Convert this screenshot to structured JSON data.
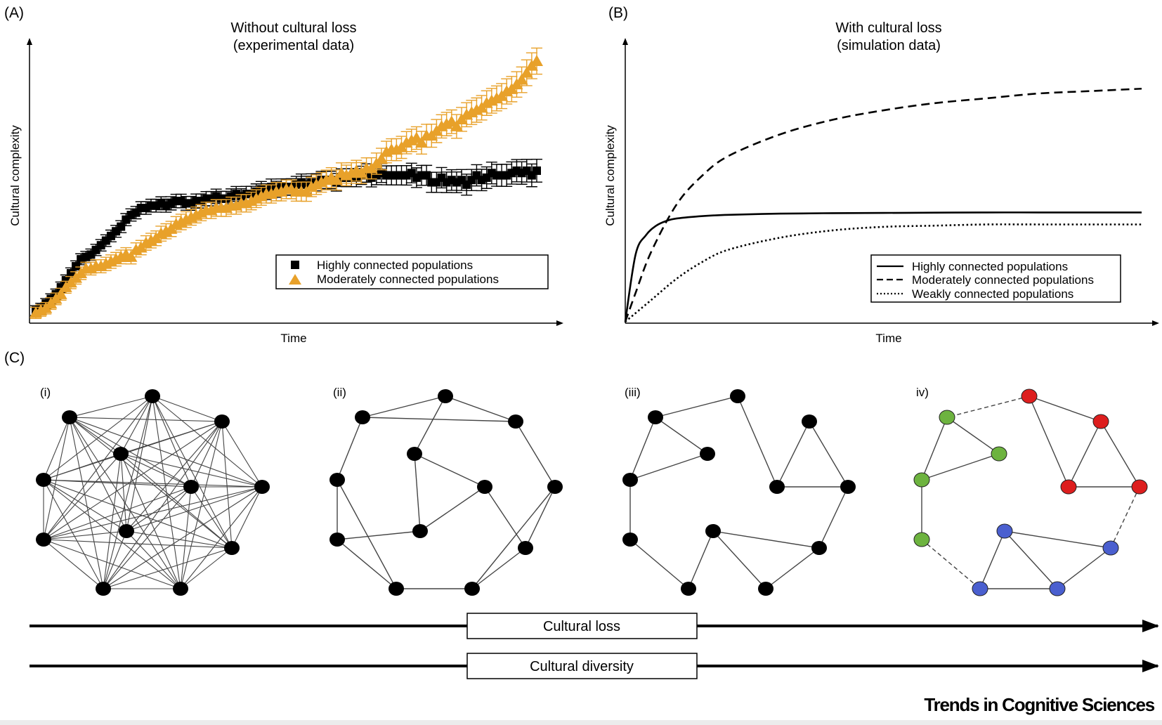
{
  "panel_a": {
    "label": "(A)",
    "title_line1": "Without cultural loss",
    "title_line2": "(experimental data)",
    "ylabel": "Cultural complexity",
    "xlabel": "Time",
    "legend": [
      "Highly connected populations",
      "Moderately connected populations"
    ]
  },
  "panel_b": {
    "label": "(B)",
    "title_line1": "With cultural loss",
    "title_line2": "(simulation data)",
    "ylabel": "Cultural complexity",
    "xlabel": "Time",
    "legend": [
      "Highly connected populations",
      "Moderately connected populations",
      "Weakly connected populations"
    ]
  },
  "panel_c": {
    "label": "(C)",
    "subpanels": [
      "(i)",
      "(ii)",
      "(iii)",
      "iv)"
    ],
    "arrows": [
      "Cultural loss",
      "Cultural diversity"
    ]
  },
  "colors": {
    "black": "#000000",
    "orange": "#e8a12a",
    "green": "#6db33f",
    "red": "#dd1e1e",
    "blue": "#4a5fcf",
    "edge": "#444444"
  },
  "journal": "Trends in Cognitive Sciences",
  "chart_data": [
    {
      "type": "scatter",
      "panel": "A",
      "title": "Without cultural loss (experimental data)",
      "xlabel": "Time",
      "ylabel": "Cultural complexity",
      "legend_position": "bottom-right",
      "series": [
        {
          "name": "Highly connected populations",
          "color": "#000000",
          "marker": "square",
          "x": [
            0.0,
            0.01,
            0.02,
            0.03,
            0.04,
            0.05,
            0.06,
            0.07,
            0.08,
            0.09,
            0.1,
            0.11,
            0.12,
            0.13,
            0.14,
            0.15,
            0.16,
            0.17,
            0.18,
            0.19,
            0.2,
            0.21,
            0.22,
            0.23,
            0.24,
            0.25,
            0.26,
            0.27,
            0.28,
            0.29,
            0.3,
            0.31,
            0.32,
            0.33,
            0.34,
            0.35,
            0.36,
            0.37,
            0.38,
            0.39,
            0.4,
            0.41,
            0.42,
            0.43,
            0.44,
            0.45,
            0.46,
            0.47,
            0.48,
            0.49,
            0.5,
            0.51,
            0.52,
            0.53,
            0.54,
            0.55,
            0.56,
            0.57,
            0.58,
            0.59,
            0.6,
            0.61,
            0.62,
            0.63,
            0.64,
            0.65,
            0.66,
            0.67,
            0.68,
            0.69,
            0.7,
            0.71,
            0.72,
            0.73,
            0.74,
            0.75,
            0.76,
            0.77,
            0.78,
            0.79,
            0.8,
            0.81,
            0.82,
            0.83,
            0.84,
            0.85,
            0.86,
            0.87,
            0.88,
            0.89,
            0.9,
            0.91,
            0.92,
            0.93,
            0.94,
            0.95,
            0.96,
            0.97,
            0.98,
            0.99,
            1.0
          ],
          "y": [
            0.03,
            0.04,
            0.06,
            0.08,
            0.1,
            0.13,
            0.16,
            0.19,
            0.22,
            0.25,
            0.26,
            0.27,
            0.29,
            0.31,
            0.33,
            0.35,
            0.37,
            0.39,
            0.42,
            0.44,
            0.45,
            0.47,
            0.47,
            0.48,
            0.48,
            0.49,
            0.48,
            0.49,
            0.5,
            0.5,
            0.49,
            0.49,
            0.5,
            0.5,
            0.51,
            0.51,
            0.52,
            0.51,
            0.51,
            0.52,
            0.53,
            0.52,
            0.53,
            0.53,
            0.54,
            0.55,
            0.54,
            0.56,
            0.55,
            0.56,
            0.56,
            0.56,
            0.57,
            0.58,
            0.57,
            0.58,
            0.58,
            0.59,
            0.59,
            0.59,
            0.58,
            0.6,
            0.6,
            0.6,
            0.6,
            0.61,
            0.62,
            0.6,
            0.61,
            0.62,
            0.61,
            0.61,
            0.61,
            0.61,
            0.61,
            0.62,
            0.6,
            0.61,
            0.61,
            0.58,
            0.58,
            0.6,
            0.58,
            0.59,
            0.58,
            0.59,
            0.57,
            0.59,
            0.61,
            0.59,
            0.6,
            0.62,
            0.61,
            0.61,
            0.61,
            0.62,
            0.63,
            0.62,
            0.63,
            0.61,
            0.63
          ],
          "error": 0.035
        },
        {
          "name": "Moderately connected populations",
          "color": "#e8a12a",
          "marker": "triangle",
          "x": [
            0.0,
            0.01,
            0.02,
            0.03,
            0.04,
            0.05,
            0.06,
            0.07,
            0.08,
            0.09,
            0.1,
            0.11,
            0.12,
            0.13,
            0.14,
            0.15,
            0.16,
            0.17,
            0.18,
            0.19,
            0.2,
            0.21,
            0.22,
            0.23,
            0.24,
            0.25,
            0.26,
            0.27,
            0.28,
            0.29,
            0.3,
            0.31,
            0.32,
            0.33,
            0.34,
            0.35,
            0.36,
            0.37,
            0.38,
            0.39,
            0.4,
            0.41,
            0.42,
            0.43,
            0.44,
            0.45,
            0.46,
            0.47,
            0.48,
            0.49,
            0.5,
            0.51,
            0.52,
            0.53,
            0.54,
            0.55,
            0.56,
            0.57,
            0.58,
            0.59,
            0.6,
            0.61,
            0.62,
            0.63,
            0.64,
            0.65,
            0.66,
            0.67,
            0.68,
            0.69,
            0.7,
            0.71,
            0.72,
            0.73,
            0.74,
            0.75,
            0.76,
            0.77,
            0.78,
            0.79,
            0.8,
            0.81,
            0.82,
            0.83,
            0.84,
            0.85,
            0.86,
            0.87,
            0.88,
            0.89,
            0.9,
            0.91,
            0.92,
            0.93,
            0.94,
            0.95,
            0.96,
            0.97,
            0.98,
            0.99,
            1.0
          ],
          "y": [
            0.02,
            0.03,
            0.04,
            0.06,
            0.08,
            0.1,
            0.13,
            0.15,
            0.17,
            0.19,
            0.21,
            0.21,
            0.22,
            0.22,
            0.23,
            0.24,
            0.25,
            0.26,
            0.27,
            0.26,
            0.29,
            0.3,
            0.32,
            0.33,
            0.34,
            0.36,
            0.37,
            0.38,
            0.4,
            0.41,
            0.42,
            0.43,
            0.44,
            0.45,
            0.46,
            0.46,
            0.47,
            0.47,
            0.47,
            0.48,
            0.48,
            0.49,
            0.49,
            0.5,
            0.51,
            0.52,
            0.53,
            0.53,
            0.54,
            0.54,
            0.55,
            0.55,
            0.54,
            0.54,
            0.54,
            0.56,
            0.57,
            0.58,
            0.59,
            0.6,
            0.59,
            0.62,
            0.61,
            0.62,
            0.63,
            0.62,
            0.64,
            0.64,
            0.66,
            0.68,
            0.71,
            0.72,
            0.72,
            0.73,
            0.75,
            0.76,
            0.77,
            0.75,
            0.78,
            0.78,
            0.8,
            0.82,
            0.83,
            0.84,
            0.82,
            0.85,
            0.87,
            0.88,
            0.89,
            0.9,
            0.92,
            0.93,
            0.94,
            0.95,
            0.97,
            0.98,
            1.0,
            1.02,
            1.05,
            1.08,
            1.1
          ],
          "error": 0.04
        }
      ]
    },
    {
      "type": "line",
      "panel": "B",
      "title": "With cultural loss (simulation data)",
      "xlabel": "Time",
      "ylabel": "Cultural complexity",
      "legend_position": "bottom-right",
      "series": [
        {
          "name": "Highly connected populations",
          "style": "solid",
          "x": [
            0,
            0.02,
            0.04,
            0.06,
            0.08,
            0.1,
            0.15,
            0.2,
            0.3,
            0.4,
            0.5,
            0.6,
            0.7,
            0.8,
            0.9,
            1.0
          ],
          "y": [
            0,
            0.28,
            0.36,
            0.4,
            0.42,
            0.43,
            0.44,
            0.445,
            0.45,
            0.452,
            0.453,
            0.454,
            0.455,
            0.455,
            0.455,
            0.455
          ]
        },
        {
          "name": "Moderately connected populations",
          "style": "dashed",
          "x": [
            0,
            0.02,
            0.05,
            0.1,
            0.15,
            0.2,
            0.3,
            0.4,
            0.5,
            0.6,
            0.7,
            0.8,
            0.9,
            1.0
          ],
          "y": [
            0,
            0.12,
            0.29,
            0.49,
            0.61,
            0.69,
            0.78,
            0.84,
            0.88,
            0.91,
            0.93,
            0.95,
            0.96,
            0.97
          ]
        },
        {
          "name": "Weakly connected populations",
          "style": "dotted",
          "x": [
            0,
            0.05,
            0.1,
            0.15,
            0.2,
            0.3,
            0.4,
            0.5,
            0.6,
            0.7,
            0.8,
            0.9,
            1.0
          ],
          "y": [
            0,
            0.09,
            0.18,
            0.25,
            0.3,
            0.35,
            0.38,
            0.395,
            0.4,
            0.405,
            0.405,
            0.405,
            0.405
          ]
        }
      ]
    }
  ]
}
